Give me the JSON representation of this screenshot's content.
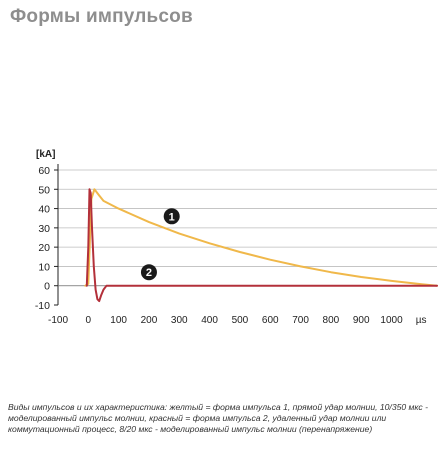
{
  "page": {
    "title": "Формы импульсов",
    "caption": "Виды импульсов и их характеристика: желтый = форма импульса 1, прямой удар молнии, 10/350 мкс - моделированный импульс молнии, красный = форма импульса 2, удаленный удар молнии или коммутационный процесс, 8/20 мкс - моделированный импульс молнии (перенапряжение)"
  },
  "chart_data": {
    "type": "line",
    "title": "",
    "xlabel": "µs",
    "ylabel": "[kA]",
    "xlim": [
      -100,
      1150
    ],
    "ylim": [
      -10,
      60
    ],
    "x_ticks": [
      -100,
      0,
      100,
      200,
      300,
      400,
      500,
      600,
      700,
      800,
      900,
      1000
    ],
    "x_tick_labels": [
      "-100",
      "0",
      "100",
      "200",
      "300",
      "400",
      "500",
      "600",
      "700",
      "800",
      "900",
      "1000"
    ],
    "y_ticks": [
      -10,
      0,
      10,
      20,
      30,
      40,
      50,
      60
    ],
    "y_tick_labels": [
      "-10",
      "0",
      "10",
      "20",
      "30",
      "40",
      "50",
      "60"
    ],
    "grid": true,
    "colors": {
      "yellow": "#f0b84a",
      "red": "#b3303a",
      "grid": "#bdbdbd",
      "axis": "#222222"
    },
    "series": [
      {
        "marker": "1",
        "color": "#f0b84a",
        "x": [
          -10,
          0,
          10,
          20,
          35,
          50,
          100,
          200,
          300,
          400,
          500,
          600,
          700,
          800,
          900,
          1000,
          1100,
          1150
        ],
        "y": [
          0,
          1,
          45,
          50,
          47,
          44,
          40,
          33,
          27,
          22,
          17.5,
          13.5,
          10,
          7,
          4.5,
          2.5,
          0.8,
          0
        ]
      },
      {
        "marker": "2",
        "color": "#b3303a",
        "x": [
          -5,
          0,
          4,
          8,
          12,
          18,
          24,
          30,
          36,
          42,
          50,
          60,
          80,
          120,
          1150
        ],
        "y": [
          0,
          20,
          50,
          48,
          30,
          10,
          -2,
          -7,
          -8,
          -5,
          -2,
          0,
          0,
          0,
          0
        ]
      }
    ],
    "annotations": [
      {
        "label": "1",
        "x": 275,
        "y": 36
      },
      {
        "label": "2",
        "x": 200,
        "y": 7
      }
    ]
  }
}
